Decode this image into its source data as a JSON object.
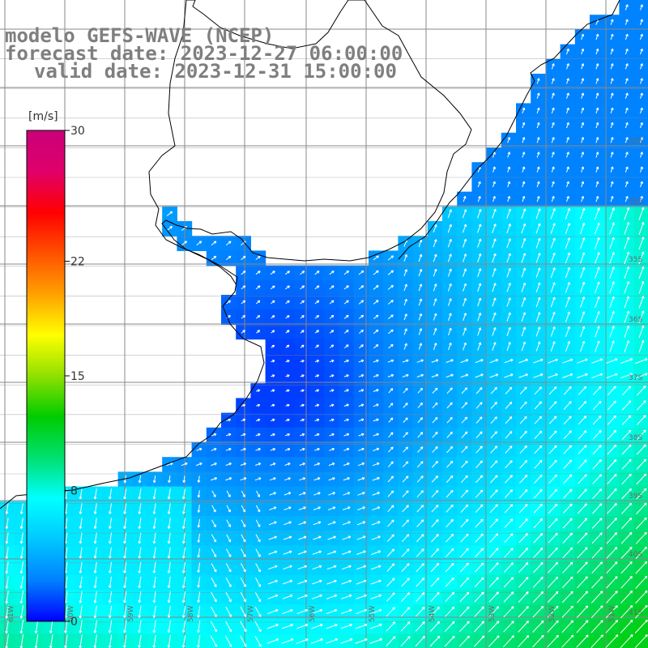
{
  "title": {
    "model": "modelo GEFS-WAVE (NCEP)",
    "forecast": "forecast date: 2023-12-27 06:00:00",
    "valid": "valid date: 2023-12-31 15:00:00"
  },
  "colorbar": {
    "unit": "[m/s]",
    "ticks": [
      "30",
      "22",
      "15",
      "8",
      "0"
    ],
    "tick_values": [
      30,
      22,
      15,
      8,
      0
    ],
    "min": 0,
    "max": 30,
    "colors": [
      "#0000ff",
      "#0080ff",
      "#00c8ff",
      "#00ffff",
      "#00e070",
      "#00cc00",
      "#90e000",
      "#ffff00",
      "#ffa000",
      "#ff5000",
      "#ff0000",
      "#e0006a",
      "#c8007a"
    ]
  },
  "map": {
    "lon_labels": [
      "61W",
      "60W",
      "59W",
      "58W",
      "57W",
      "56W",
      "55W",
      "54W",
      "53W",
      "52W",
      "51W"
    ],
    "lat_labels": [
      "33S",
      "34S",
      "35S",
      "36S",
      "37S",
      "38S",
      "39S",
      "40S",
      "41S"
    ],
    "field": "wind speed and direction"
  },
  "colors": {
    "land": "#ffffff",
    "coast": "#000000",
    "grid": "#888888",
    "title_text": "#7f7f7f",
    "arrow": "#ffffff"
  }
}
